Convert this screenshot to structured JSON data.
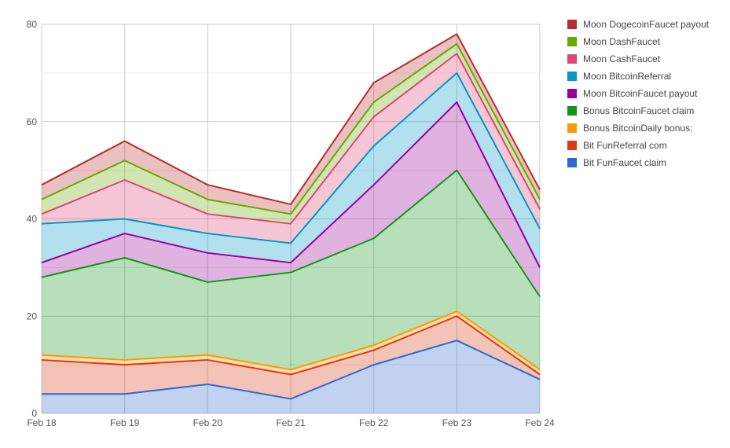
{
  "chart_data": {
    "type": "area",
    "stacked": true,
    "categories": [
      "Feb 18",
      "Feb 19",
      "Feb 20",
      "Feb 21",
      "Feb 22",
      "Feb 23",
      "Feb 24"
    ],
    "ylim": [
      0,
      80
    ],
    "yticks": [
      0,
      20,
      40,
      60,
      80
    ],
    "grid": true,
    "legend_position": "right",
    "title": "",
    "xlabel": "",
    "ylabel": "",
    "series": [
      {
        "name": "Bit FunFaucet claim",
        "color": "#3366cc",
        "values": [
          4,
          4,
          6,
          3,
          10,
          15,
          7
        ]
      },
      {
        "name": "Bit FunReferral com",
        "color": "#dc3912",
        "values": [
          7,
          6,
          5,
          5,
          3,
          5,
          1
        ]
      },
      {
        "name": "Bonus BitcoinDaily bonus:",
        "color": "#ff9900",
        "values": [
          1,
          1,
          1,
          1,
          1,
          1,
          1
        ]
      },
      {
        "name": "Bonus BitcoinFaucet claim",
        "color": "#109618",
        "values": [
          16,
          21,
          15,
          20,
          22,
          29,
          15
        ]
      },
      {
        "name": "Moon BitcoinFaucet payout",
        "color": "#990099",
        "values": [
          3,
          5,
          6,
          2,
          11,
          14,
          6
        ]
      },
      {
        "name": "Moon BitcoinReferral",
        "color": "#0099c6",
        "values": [
          8,
          3,
          4,
          4,
          8,
          6,
          8
        ]
      },
      {
        "name": "Moon CashFaucet",
        "color": "#dd4477",
        "values": [
          2,
          8,
          4,
          4,
          6,
          4,
          4
        ]
      },
      {
        "name": "Moon DashFaucet",
        "color": "#66aa00",
        "values": [
          3,
          4,
          3,
          2,
          3,
          2,
          2
        ]
      },
      {
        "name": "Moon DogecoinFaucet payout",
        "color": "#b82e2e",
        "values": [
          3,
          4,
          3,
          2,
          4,
          2,
          2
        ]
      }
    ]
  }
}
